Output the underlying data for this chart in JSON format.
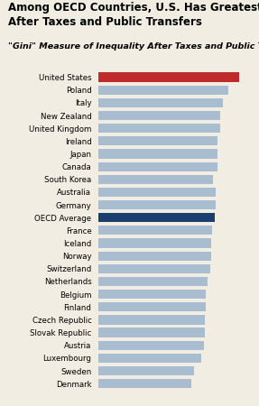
{
  "title_line1": "Among OECD Countries, U.S. Has Greatest Income Inequality",
  "title_line2": "After Taxes and Public Transfers",
  "subtitle": "\"Gini\" Measure of Inequality After Taxes and Public Transfers",
  "countries": [
    "United States",
    "Poland",
    "Italy",
    "New Zealand",
    "United Kingdom",
    "Ireland",
    "Japan",
    "Canada",
    "South Korea",
    "Australia",
    "Germany",
    "OECD Average",
    "France",
    "Iceland",
    "Norway",
    "Switzerland",
    "Netherlands",
    "Belgium",
    "Finland",
    "Czech Republic",
    "Slovak Republic",
    "Austria",
    "Luxembourg",
    "Sweden",
    "Denmark"
  ],
  "values": [
    0.38,
    0.351,
    0.337,
    0.33,
    0.33,
    0.323,
    0.321,
    0.321,
    0.31,
    0.316,
    0.316,
    0.314,
    0.306,
    0.304,
    0.304,
    0.303,
    0.294,
    0.29,
    0.289,
    0.288,
    0.287,
    0.285,
    0.278,
    0.259,
    0.252
  ],
  "bar_colors": [
    "#bf2b2b",
    "#a8bdd0",
    "#a8bdd0",
    "#a8bdd0",
    "#a8bdd0",
    "#a8bdd0",
    "#a8bdd0",
    "#a8bdd0",
    "#a8bdd0",
    "#a8bdd0",
    "#a8bdd0",
    "#1a3f6f",
    "#a8bdd0",
    "#a8bdd0",
    "#a8bdd0",
    "#a8bdd0",
    "#a8bdd0",
    "#a8bdd0",
    "#a8bdd0",
    "#a8bdd0",
    "#a8bdd0",
    "#a8bdd0",
    "#a8bdd0",
    "#a8bdd0",
    "#a8bdd0"
  ],
  "xlim": [
    0,
    0.42
  ],
  "background_color": "#f2ede2",
  "title_fontsize": 8.5,
  "subtitle_fontsize": 6.8,
  "label_fontsize": 6.2
}
